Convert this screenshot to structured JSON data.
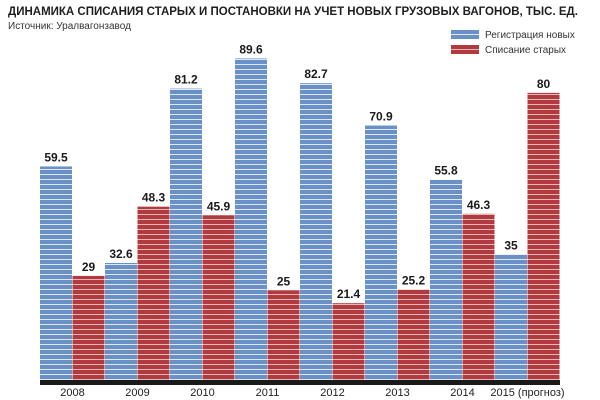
{
  "header": {
    "title": "ДИНАМИКА СПИСАНИЯ СТАРЫХ И ПОСТАНОВКИ НА УЧЕТ НОВЫХ ГРУЗОВЫХ ВАГОНОВ, ТЫС. ЕД.",
    "source": "Источник: Уралвагонзавод"
  },
  "chart_data": {
    "type": "bar",
    "title": "ДИНАМИКА СПИСАНИЯ СТАРЫХ И ПОСТАНОВКИ НА УЧЕТ НОВЫХ ГРУЗОВЫХ ВАГОНОВ, ТЫС. ЕД.",
    "categories": [
      "2008",
      "2009",
      "2010",
      "2011",
      "2012",
      "2013",
      "2014",
      "2015 (прогноз)"
    ],
    "series": [
      {
        "name": "Регистрация новых",
        "color": "#6a90c8",
        "values": [
          59.5,
          32.6,
          81.2,
          89.6,
          82.7,
          70.9,
          55.8,
          35
        ]
      },
      {
        "name": "Списание старых",
        "color": "#b03a3e",
        "values": [
          29,
          48.3,
          45.9,
          25,
          21.4,
          25.2,
          46.3,
          80
        ]
      }
    ],
    "value_labels": [
      [
        "59.5",
        "32.6",
        "81.2",
        "89.6",
        "82.7",
        "70.9",
        "55.8",
        "35"
      ],
      [
        "29",
        "48.3",
        "45.9",
        "25",
        "21.4",
        "25.2",
        "46.3",
        "80"
      ]
    ],
    "ylim": [
      0,
      90
    ],
    "xlabel": "",
    "ylabel": "",
    "grid": false,
    "legend": "top-right"
  }
}
